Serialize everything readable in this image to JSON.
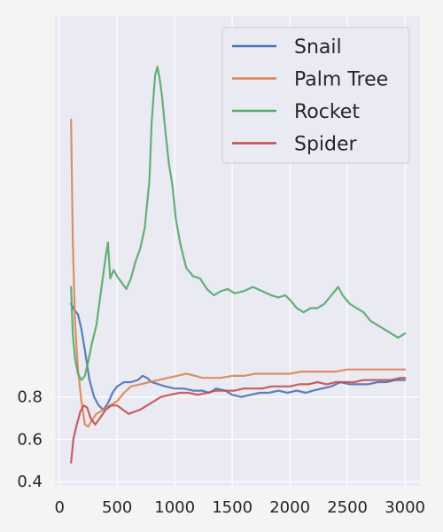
{
  "chart_data": {
    "type": "line",
    "title": "",
    "xlabel": "",
    "ylabel": "",
    "xlim": [
      -40,
      3130
    ],
    "ylim": [
      0.38,
      2.6
    ],
    "xticks": [
      0,
      500,
      1000,
      1500,
      2000,
      2500,
      3000
    ],
    "xtick_labels": [
      "0",
      "500",
      "1000",
      "1500",
      "2000",
      "2500",
      "3000"
    ],
    "yticks": [
      0.4,
      0.6,
      0.8
    ],
    "ytick_labels": [
      "0.4",
      "0.6",
      "0.8"
    ],
    "grid": true,
    "legend_position": "top-right",
    "series": [
      {
        "name": "Snail",
        "color": "#4c72b0",
        "points": [
          [
            100,
            1.24
          ],
          [
            130,
            1.21
          ],
          [
            160,
            1.19
          ],
          [
            190,
            1.12
          ],
          [
            220,
            1.02
          ],
          [
            260,
            0.88
          ],
          [
            300,
            0.8
          ],
          [
            340,
            0.76
          ],
          [
            380,
            0.74
          ],
          [
            420,
            0.77
          ],
          [
            460,
            0.82
          ],
          [
            500,
            0.85
          ],
          [
            560,
            0.87
          ],
          [
            620,
            0.87
          ],
          [
            680,
            0.88
          ],
          [
            720,
            0.9
          ],
          [
            760,
            0.89
          ],
          [
            800,
            0.87
          ],
          [
            860,
            0.86
          ],
          [
            920,
            0.85
          ],
          [
            1000,
            0.84
          ],
          [
            1080,
            0.84
          ],
          [
            1160,
            0.83
          ],
          [
            1240,
            0.83
          ],
          [
            1300,
            0.82
          ],
          [
            1360,
            0.84
          ],
          [
            1440,
            0.83
          ],
          [
            1500,
            0.81
          ],
          [
            1580,
            0.8
          ],
          [
            1660,
            0.81
          ],
          [
            1740,
            0.82
          ],
          [
            1820,
            0.82
          ],
          [
            1900,
            0.83
          ],
          [
            1980,
            0.82
          ],
          [
            2060,
            0.83
          ],
          [
            2140,
            0.82
          ],
          [
            2200,
            0.83
          ],
          [
            2280,
            0.84
          ],
          [
            2360,
            0.85
          ],
          [
            2440,
            0.87
          ],
          [
            2520,
            0.86
          ],
          [
            2600,
            0.86
          ],
          [
            2680,
            0.86
          ],
          [
            2760,
            0.87
          ],
          [
            2840,
            0.87
          ],
          [
            2920,
            0.88
          ],
          [
            3000,
            0.88
          ]
        ]
      },
      {
        "name": "Palm Tree",
        "color": "#dd8452",
        "points": [
          [
            100,
            2.11
          ],
          [
            115,
            1.55
          ],
          [
            135,
            1.15
          ],
          [
            160,
            0.93
          ],
          [
            190,
            0.78
          ],
          [
            220,
            0.67
          ],
          [
            250,
            0.66
          ],
          [
            280,
            0.69
          ],
          [
            320,
            0.72
          ],
          [
            380,
            0.74
          ],
          [
            440,
            0.76
          ],
          [
            500,
            0.78
          ],
          [
            560,
            0.82
          ],
          [
            620,
            0.85
          ],
          [
            700,
            0.86
          ],
          [
            780,
            0.87
          ],
          [
            860,
            0.88
          ],
          [
            940,
            0.89
          ],
          [
            1020,
            0.9
          ],
          [
            1100,
            0.91
          ],
          [
            1180,
            0.9
          ],
          [
            1240,
            0.89
          ],
          [
            1300,
            0.89
          ],
          [
            1400,
            0.89
          ],
          [
            1500,
            0.9
          ],
          [
            1600,
            0.9
          ],
          [
            1700,
            0.91
          ],
          [
            1800,
            0.91
          ],
          [
            1900,
            0.91
          ],
          [
            2000,
            0.91
          ],
          [
            2100,
            0.92
          ],
          [
            2200,
            0.92
          ],
          [
            2300,
            0.92
          ],
          [
            2400,
            0.92
          ],
          [
            2500,
            0.93
          ],
          [
            2600,
            0.93
          ],
          [
            2700,
            0.93
          ],
          [
            2800,
            0.93
          ],
          [
            2900,
            0.93
          ],
          [
            3000,
            0.93
          ]
        ]
      },
      {
        "name": "Rocket",
        "color": "#55a868",
        "points": [
          [
            100,
            1.32
          ],
          [
            115,
            1.1
          ],
          [
            135,
            0.98
          ],
          [
            160,
            0.91
          ],
          [
            190,
            0.88
          ],
          [
            220,
            0.9
          ],
          [
            250,
            0.97
          ],
          [
            280,
            1.05
          ],
          [
            320,
            1.14
          ],
          [
            360,
            1.3
          ],
          [
            400,
            1.46
          ],
          [
            420,
            1.53
          ],
          [
            440,
            1.36
          ],
          [
            470,
            1.4
          ],
          [
            500,
            1.37
          ],
          [
            540,
            1.34
          ],
          [
            580,
            1.31
          ],
          [
            620,
            1.36
          ],
          [
            660,
            1.44
          ],
          [
            700,
            1.5
          ],
          [
            740,
            1.6
          ],
          [
            780,
            1.82
          ],
          [
            800,
            2.1
          ],
          [
            830,
            2.32
          ],
          [
            850,
            2.36
          ],
          [
            870,
            2.3
          ],
          [
            890,
            2.22
          ],
          [
            920,
            2.05
          ],
          [
            950,
            1.9
          ],
          [
            980,
            1.8
          ],
          [
            1010,
            1.64
          ],
          [
            1050,
            1.52
          ],
          [
            1100,
            1.41
          ],
          [
            1160,
            1.37
          ],
          [
            1220,
            1.36
          ],
          [
            1280,
            1.31
          ],
          [
            1340,
            1.28
          ],
          [
            1400,
            1.3
          ],
          [
            1460,
            1.31
          ],
          [
            1520,
            1.29
          ],
          [
            1600,
            1.3
          ],
          [
            1680,
            1.32
          ],
          [
            1760,
            1.3
          ],
          [
            1840,
            1.28
          ],
          [
            1900,
            1.27
          ],
          [
            1960,
            1.28
          ],
          [
            2000,
            1.26
          ],
          [
            2060,
            1.22
          ],
          [
            2120,
            1.2
          ],
          [
            2180,
            1.22
          ],
          [
            2240,
            1.22
          ],
          [
            2300,
            1.24
          ],
          [
            2360,
            1.28
          ],
          [
            2420,
            1.32
          ],
          [
            2460,
            1.28
          ],
          [
            2520,
            1.24
          ],
          [
            2580,
            1.22
          ],
          [
            2640,
            1.2
          ],
          [
            2700,
            1.16
          ],
          [
            2760,
            1.14
          ],
          [
            2820,
            1.12
          ],
          [
            2880,
            1.1
          ],
          [
            2940,
            1.08
          ],
          [
            3000,
            1.1
          ]
        ]
      },
      {
        "name": "Spider",
        "color": "#c44e52",
        "points": [
          [
            100,
            0.49
          ],
          [
            120,
            0.6
          ],
          [
            150,
            0.67
          ],
          [
            180,
            0.73
          ],
          [
            210,
            0.76
          ],
          [
            240,
            0.75
          ],
          [
            270,
            0.7
          ],
          [
            310,
            0.67
          ],
          [
            350,
            0.7
          ],
          [
            400,
            0.74
          ],
          [
            450,
            0.76
          ],
          [
            500,
            0.76
          ],
          [
            550,
            0.74
          ],
          [
            600,
            0.72
          ],
          [
            650,
            0.73
          ],
          [
            700,
            0.74
          ],
          [
            760,
            0.76
          ],
          [
            820,
            0.78
          ],
          [
            880,
            0.8
          ],
          [
            960,
            0.81
          ],
          [
            1040,
            0.82
          ],
          [
            1120,
            0.82
          ],
          [
            1200,
            0.81
          ],
          [
            1280,
            0.82
          ],
          [
            1360,
            0.83
          ],
          [
            1440,
            0.83
          ],
          [
            1520,
            0.83
          ],
          [
            1600,
            0.84
          ],
          [
            1680,
            0.84
          ],
          [
            1760,
            0.84
          ],
          [
            1840,
            0.85
          ],
          [
            1920,
            0.85
          ],
          [
            2000,
            0.85
          ],
          [
            2080,
            0.86
          ],
          [
            2160,
            0.86
          ],
          [
            2240,
            0.87
          ],
          [
            2320,
            0.86
          ],
          [
            2400,
            0.87
          ],
          [
            2480,
            0.87
          ],
          [
            2560,
            0.87
          ],
          [
            2640,
            0.88
          ],
          [
            2720,
            0.88
          ],
          [
            2800,
            0.88
          ],
          [
            2880,
            0.88
          ],
          [
            2960,
            0.89
          ],
          [
            3000,
            0.89
          ]
        ]
      }
    ]
  }
}
